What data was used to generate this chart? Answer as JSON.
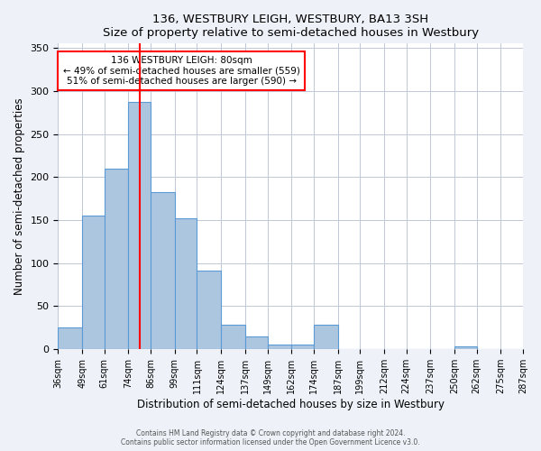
{
  "title": "136, WESTBURY LEIGH, WESTBURY, BA13 3SH",
  "subtitle": "Size of property relative to semi-detached houses in Westbury",
  "xlabel": "Distribution of semi-detached houses by size in Westbury",
  "ylabel": "Number of semi-detached properties",
  "bar_edges": [
    36,
    49,
    61,
    74,
    86,
    99,
    111,
    124,
    137,
    149,
    162,
    174,
    187,
    199,
    212,
    224,
    237,
    250,
    262,
    275,
    287
  ],
  "bar_heights": [
    25,
    155,
    210,
    287,
    183,
    152,
    91,
    28,
    15,
    5,
    5,
    28,
    0,
    0,
    0,
    0,
    0,
    3,
    0,
    0
  ],
  "bar_color": "#adc6e0",
  "bar_edge_color": "#5b9bd5",
  "vline_x": 80,
  "vline_color": "red",
  "annotation_title": "136 WESTBURY LEIGH: 80sqm",
  "annotation_line1": "← 49% of semi-detached houses are smaller (559)",
  "annotation_line2": "51% of semi-detached houses are larger (590) →",
  "ylim": [
    0,
    355
  ],
  "yticks": [
    0,
    50,
    100,
    150,
    200,
    250,
    300,
    350
  ],
  "tick_labels": [
    "36sqm",
    "49sqm",
    "61sqm",
    "74sqm",
    "86sqm",
    "99sqm",
    "111sqm",
    "124sqm",
    "137sqm",
    "149sqm",
    "162sqm",
    "174sqm",
    "187sqm",
    "199sqm",
    "212sqm",
    "224sqm",
    "237sqm",
    "250sqm",
    "262sqm",
    "275sqm",
    "287sqm"
  ],
  "footer1": "Contains HM Land Registry data © Crown copyright and database right 2024.",
  "footer2": "Contains public sector information licensed under the Open Government Licence v3.0.",
  "bg_color": "#eef2f8",
  "plot_bg_color": "#ffffff"
}
